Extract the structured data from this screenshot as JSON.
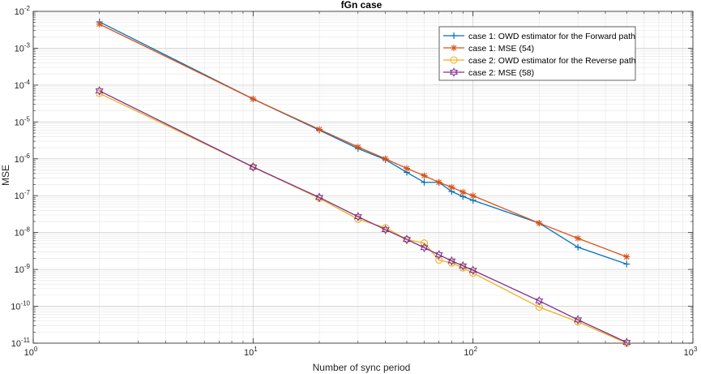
{
  "chart_data": {
    "type": "line",
    "title": "fGn case",
    "xlabel": "Number of sync period",
    "ylabel": "MSE",
    "xscale": "log",
    "yscale": "log",
    "xlim": [
      1,
      1000
    ],
    "ylim": [
      1e-11,
      0.01
    ],
    "grid": true,
    "minor_grid": true,
    "legend_position": "top-right",
    "x_ticks": [
      {
        "base": "10",
        "exp": "0"
      },
      {
        "base": "10",
        "exp": "1"
      },
      {
        "base": "10",
        "exp": "2"
      },
      {
        "base": "10",
        "exp": "3"
      }
    ],
    "y_ticks": [
      {
        "base": "10",
        "exp": "-11"
      },
      {
        "base": "10",
        "exp": "-10"
      },
      {
        "base": "10",
        "exp": "-9"
      },
      {
        "base": "10",
        "exp": "-8"
      },
      {
        "base": "10",
        "exp": "-7"
      },
      {
        "base": "10",
        "exp": "-6"
      },
      {
        "base": "10",
        "exp": "-5"
      },
      {
        "base": "10",
        "exp": "-4"
      },
      {
        "base": "10",
        "exp": "-3"
      },
      {
        "base": "10",
        "exp": "-2"
      }
    ],
    "series": [
      {
        "name": "case 1: OWD estimator for the Forward path",
        "color": "#0072BD",
        "marker": "plus",
        "x": [
          2,
          10,
          20,
          30,
          40,
          50,
          60,
          70,
          80,
          90,
          100,
          200,
          300,
          500
        ],
        "y": [
          0.0052,
          4.2e-05,
          6e-06,
          1.9e-06,
          9.5e-07,
          4.3e-07,
          2.3e-07,
          2.3e-07,
          1.3e-07,
          9.5e-08,
          7.5e-08,
          1.8e-08,
          4e-09,
          1.4e-09
        ]
      },
      {
        "name": "case 1: MSE (54)",
        "color": "#D95319",
        "marker": "asterisk",
        "x": [
          2,
          10,
          20,
          30,
          40,
          50,
          60,
          70,
          80,
          90,
          100,
          200,
          300,
          500
        ],
        "y": [
          0.0045,
          4.2e-05,
          6.3e-06,
          2.1e-06,
          1e-06,
          5.5e-07,
          3.5e-07,
          2.3e-07,
          1.7e-07,
          1.25e-07,
          1e-07,
          1.8e-08,
          7e-09,
          2.2e-09
        ]
      },
      {
        "name": "case 2: OWD estimator for the Reverse path",
        "color": "#EDB120",
        "marker": "circle",
        "x": [
          2,
          10,
          20,
          30,
          40,
          50,
          60,
          70,
          80,
          90,
          100,
          200,
          300,
          500
        ],
        "y": [
          6e-05,
          6e-07,
          8.5e-08,
          2.3e-08,
          1.35e-08,
          6.5e-09,
          5.2e-09,
          1.8e-09,
          1.5e-09,
          1.1e-09,
          8e-10,
          9.5e-11,
          3.8e-11,
          1e-11
        ]
      },
      {
        "name": "case 2: MSE (58)",
        "color": "#7E2F8E",
        "marker": "hexagram",
        "x": [
          2,
          10,
          20,
          30,
          40,
          50,
          60,
          70,
          80,
          90,
          100,
          200,
          300,
          500
        ],
        "y": [
          7e-05,
          6e-07,
          9e-08,
          2.7e-08,
          1.2e-08,
          6.5e-09,
          3.9e-09,
          2.5e-09,
          1.7e-09,
          1.25e-09,
          9.5e-10,
          1.4e-10,
          4.3e-11,
          1.05e-11
        ]
      }
    ]
  }
}
